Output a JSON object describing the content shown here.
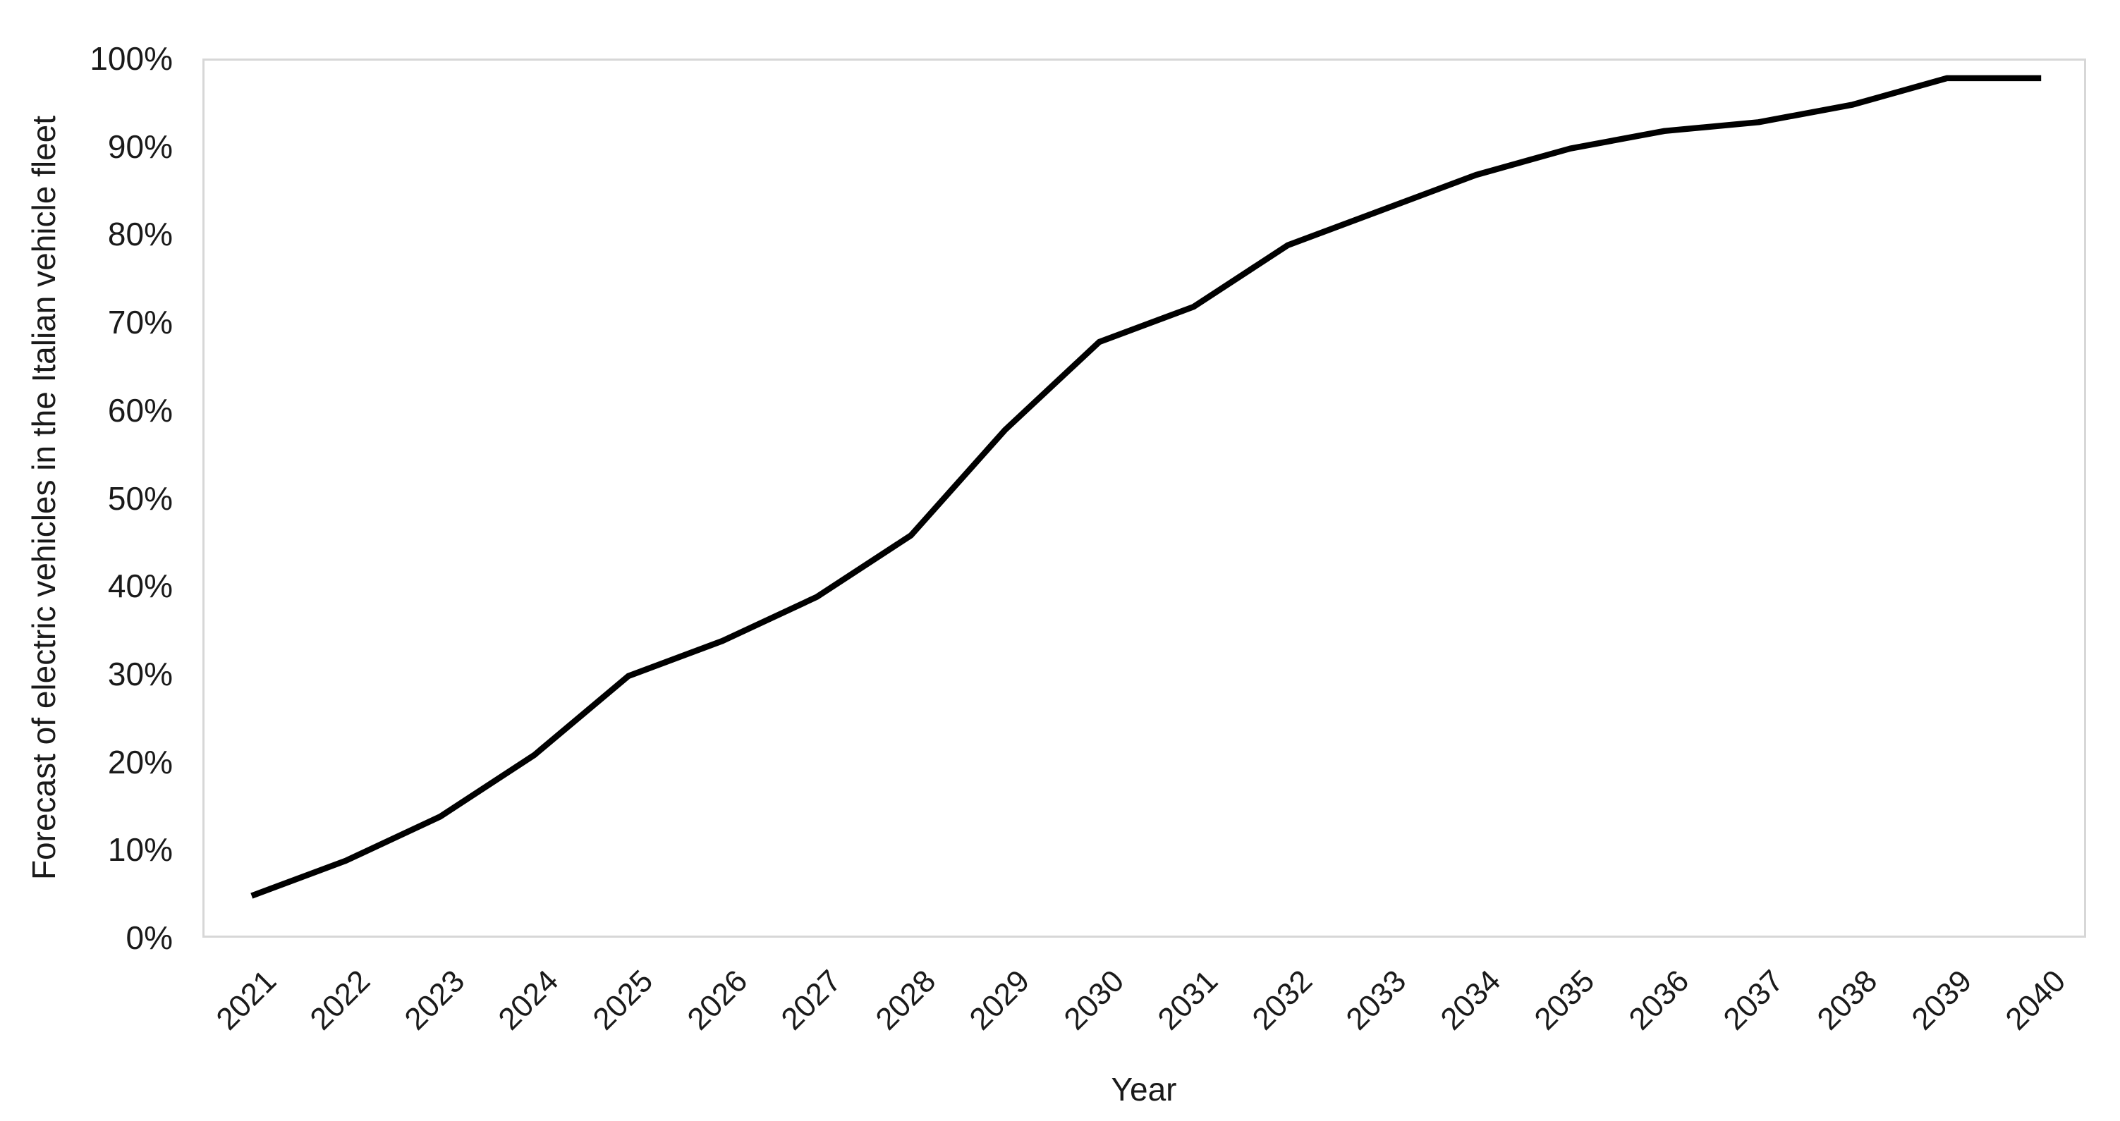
{
  "chart_data": {
    "type": "line",
    "title": "",
    "xlabel": "Year",
    "ylabel": "Forecast of electric vehicles in the Italian vehicle fleet",
    "categories": [
      "2021",
      "2022",
      "2023",
      "2024",
      "2025",
      "2026",
      "2027",
      "2028",
      "2029",
      "2030",
      "2031",
      "2032",
      "2033",
      "2034",
      "2035",
      "2036",
      "2037",
      "2038",
      "2039",
      "2040"
    ],
    "series": [
      {
        "name": "Forecast of electric vehicles in the Italian vehicle fleet",
        "values": [
          5,
          9,
          14,
          21,
          30,
          34,
          39,
          46,
          58,
          68,
          72,
          79,
          83,
          87,
          90,
          92,
          93,
          95,
          98,
          98
        ]
      }
    ],
    "ylim": [
      0,
      100
    ],
    "y_tick_labels": [
      "0%",
      "10%",
      "20%",
      "30%",
      "40%",
      "50%",
      "60%",
      "70%",
      "80%",
      "90%",
      "100%"
    ],
    "grid": false,
    "legend_visible": false,
    "line_color": "#000000",
    "plot_border_color": "#d7d7d7",
    "text_color": "#1a1a1a"
  }
}
